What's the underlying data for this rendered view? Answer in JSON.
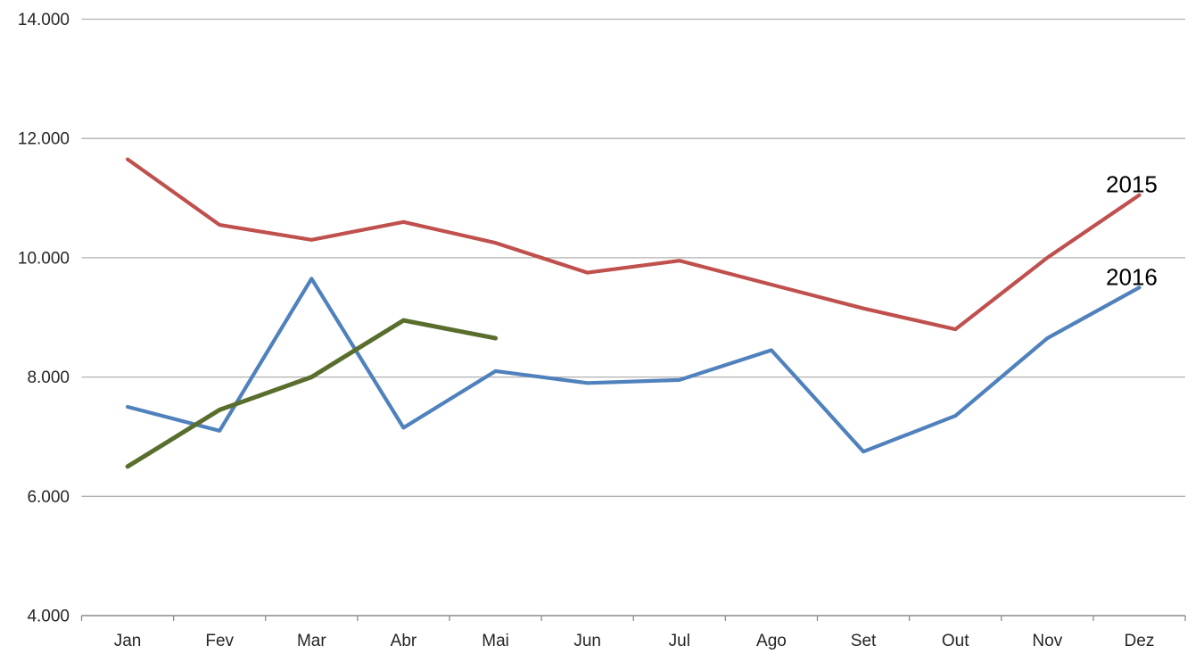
{
  "chart_data": {
    "type": "line",
    "title": "",
    "categories": [
      "Jan",
      "Fev",
      "Mar",
      "Abr",
      "Mai",
      "Jun",
      "Jul",
      "Ago",
      "Set",
      "Out",
      "Nov",
      "Dez"
    ],
    "series": [
      {
        "end_label": "2015",
        "color": "#C0504D",
        "values": [
          11650,
          10550,
          10300,
          10600,
          10250,
          9750,
          9950,
          9550,
          9150,
          8800,
          10000,
          11050
        ]
      },
      {
        "end_label": "2016",
        "color": "#4F81BD",
        "values": [
          7500,
          7100,
          9650,
          7150,
          8100,
          7900,
          7950,
          8450,
          6750,
          7350,
          8650,
          9500
        ]
      },
      {
        "end_label": "",
        "color": "#596E2D",
        "values": [
          6500,
          7450,
          8000,
          8950,
          8650,
          null,
          null,
          null,
          null,
          null,
          null,
          null
        ]
      }
    ],
    "ylim": [
      4000,
      14000
    ],
    "ytick_step": 2000,
    "yticks": [
      {
        "value": 14000,
        "label": "14.000"
      },
      {
        "value": 12000,
        "label": "12.000"
      },
      {
        "value": 10000,
        "label": "10.000"
      },
      {
        "value": 8000,
        "label": "8.000"
      },
      {
        "value": 6000,
        "label": "6.000"
      },
      {
        "value": 4000,
        "label": "4.000"
      }
    ],
    "grid": "horizontal",
    "legend_position": "labels-at-line-end",
    "colors": {
      "gridline": "#B0B0B0",
      "axis_line": "#8C8C8C",
      "tick_text": "#262626",
      "series_end_label_text": "#000000",
      "background": "#FFFFFF"
    }
  }
}
